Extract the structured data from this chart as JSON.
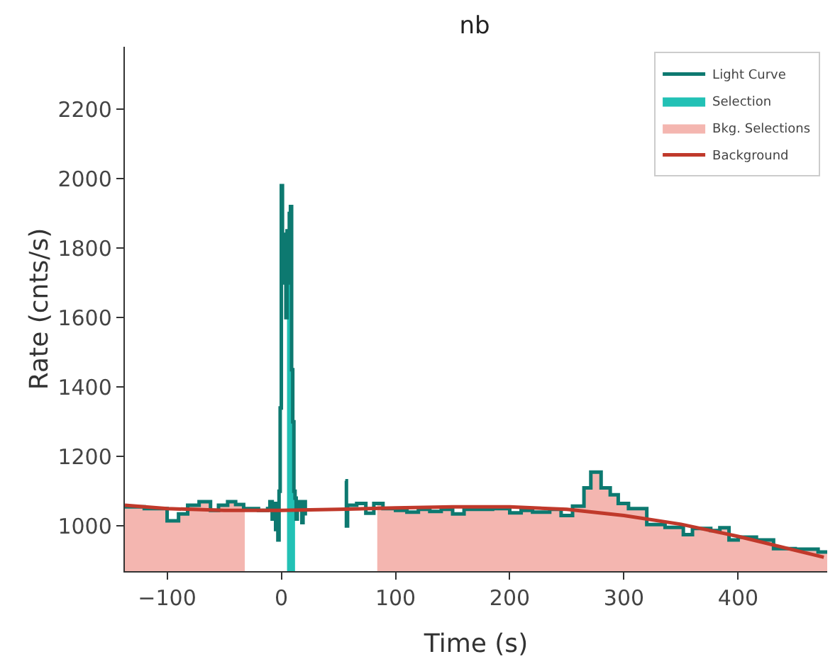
{
  "chart_data": {
    "type": "step",
    "title": "nb",
    "xlabel": "Time (s)",
    "ylabel": "Rate (cnts/s)",
    "xlim": [
      -137,
      478
    ],
    "xticks": [
      {
        "value": -100,
        "label": "−100"
      },
      0,
      100,
      200,
      300,
      400
    ],
    "ylim": [
      870,
      2380
    ],
    "yticks": [
      1000,
      1200,
      1400,
      1600,
      1800,
      2000,
      2200
    ],
    "grid": false,
    "legend": "top right",
    "series": [
      {
        "name": "Light Curve",
        "color": "#0d7970",
        "x": [
          -137,
          -120,
          -100,
          -90,
          -82,
          -72,
          -62,
          -55,
          -47,
          -40,
          -33,
          -20,
          -12,
          -10,
          -8,
          -7,
          -5,
          -4,
          -3,
          -2,
          -1,
          0,
          1,
          2,
          3,
          4,
          5,
          6,
          7,
          8,
          9,
          10,
          11,
          12,
          13,
          14,
          16,
          18,
          19,
          21,
          22,
          56,
          57,
          58,
          66,
          74,
          81,
          89,
          100,
          110,
          120,
          130,
          140,
          150,
          160,
          185,
          200,
          210,
          220,
          235,
          245,
          255,
          265,
          271,
          280,
          288,
          295,
          304,
          320,
          336,
          352,
          360,
          376,
          384,
          392,
          400,
          416,
          431,
          450,
          470,
          478
        ],
        "values": [
          1055,
          1050,
          1015,
          1035,
          1060,
          1070,
          1045,
          1060,
          1070,
          1062,
          1050,
          1045,
          1050,
          1070,
          1020,
          1065,
          990,
          1040,
          960,
          1100,
          1340,
          1980,
          1700,
          1840,
          1750,
          1600,
          1850,
          1700,
          1900,
          1920,
          1450,
          1300,
          1100,
          1080,
          1020,
          1070,
          1050,
          1010,
          1070,
          1030,
          null,
          1130,
          1000,
          1060,
          1065,
          1037,
          1065,
          1050,
          1045,
          1040,
          1048,
          1042,
          1048,
          1035,
          1048,
          1050,
          1038,
          1045,
          1040,
          1048,
          1030,
          1057,
          1110,
          1155,
          1110,
          1090,
          1065,
          1050,
          1004,
          996,
          975,
          993,
          987,
          995,
          960,
          968,
          960,
          935,
          933,
          925,
          925
        ]
      },
      {
        "name": "Selection",
        "type": "area",
        "color": "#22c1b5",
        "x": [
          5,
          6,
          7,
          8,
          9,
          10,
          11,
          12
        ],
        "values": [
          1850,
          1700,
          1900,
          1920,
          1450,
          1300,
          1100,
          1100
        ]
      },
      {
        "name": "Bkg. Selections",
        "type": "area",
        "color": "#f4b6b0",
        "x": [
          -137,
          -120,
          -100,
          -90,
          -82,
          -72,
          -62,
          -55,
          -47,
          -40,
          -33,
          -32,
          84,
          89,
          100,
          110,
          120,
          130,
          140,
          150,
          160,
          185,
          200,
          210,
          220,
          235,
          245,
          255,
          265,
          271,
          280,
          288,
          295,
          304,
          320,
          336,
          352,
          360,
          376,
          384,
          392,
          400,
          416,
          431,
          450,
          470,
          478
        ],
        "values": [
          1055,
          1050,
          1015,
          1035,
          1060,
          1070,
          1045,
          1060,
          1070,
          1062,
          1062,
          null,
          1065,
          1050,
          1045,
          1040,
          1048,
          1042,
          1048,
          1035,
          1048,
          1050,
          1038,
          1045,
          1040,
          1048,
          1030,
          1057,
          1110,
          1155,
          1110,
          1090,
          1065,
          1050,
          1004,
          996,
          975,
          993,
          987,
          995,
          960,
          968,
          960,
          935,
          933,
          925,
          925
        ]
      },
      {
        "name": "Background",
        "type": "line",
        "color": "#c0392b",
        "x": [
          -137,
          -100,
          -50,
          0,
          50,
          100,
          150,
          200,
          250,
          300,
          350,
          400,
          450,
          475
        ],
        "values": [
          1060,
          1050,
          1045,
          1045,
          1048,
          1052,
          1055,
          1055,
          1048,
          1030,
          1005,
          970,
          930,
          910
        ]
      }
    ]
  }
}
